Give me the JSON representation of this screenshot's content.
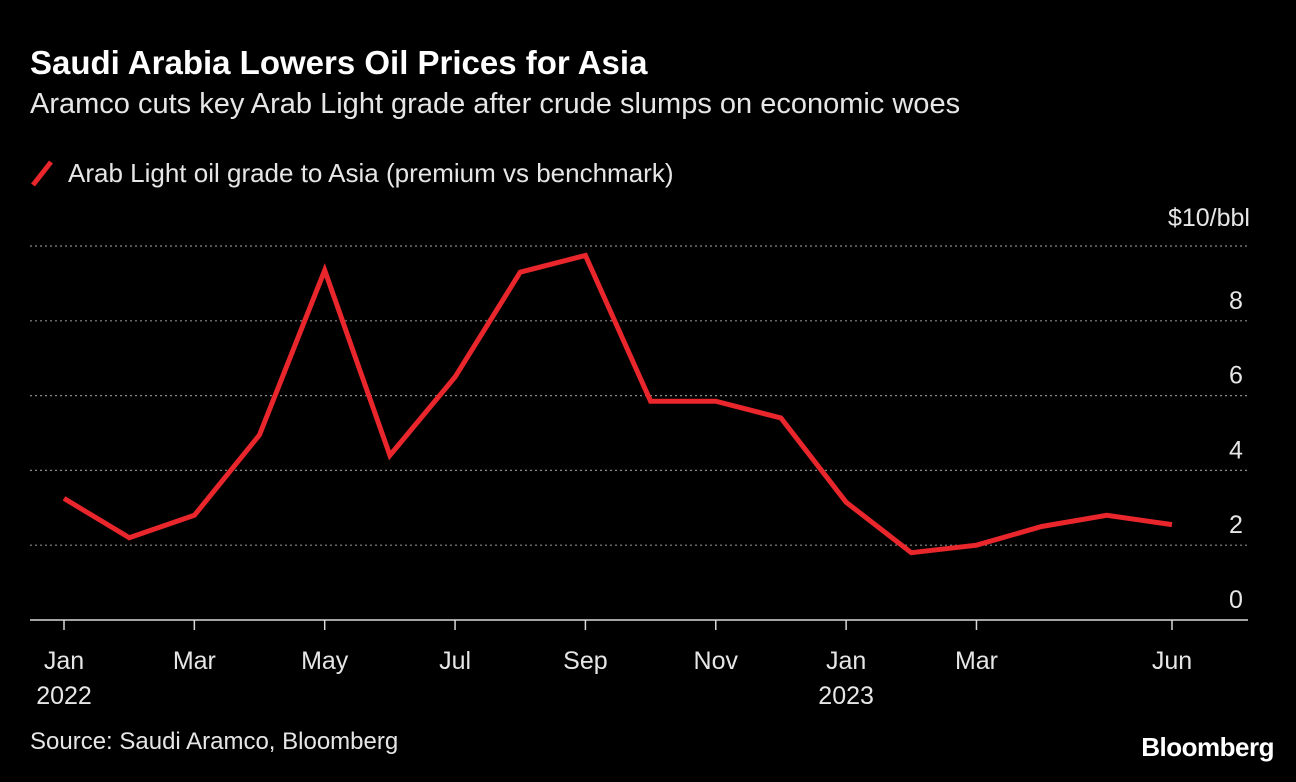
{
  "header": {
    "title": "Saudi Arabia Lowers Oil Prices for Asia",
    "subtitle": "Aramco cuts key Arab Light grade after crude slumps on economic woes"
  },
  "footer": {
    "source": "Source: Saudi Aramco, Bloomberg",
    "brand": "Bloomberg"
  },
  "colors": {
    "background": "#000000",
    "series": "#e8262b",
    "grid": "#8a8a8a",
    "text": "#e6e6e6"
  },
  "chart_data": {
    "type": "line",
    "title": "Saudi Arabia Lowers Oil Prices for Asia",
    "subtitle": "Aramco cuts key Arab Light grade after crude slumps on economic woes",
    "y_unit_label": "$10/bbl",
    "y_ticks": [
      "0",
      "2",
      "4",
      "6",
      "8"
    ],
    "ylim": [
      0,
      10
    ],
    "grid": "horizontal-dotted",
    "y_axis_position": "right",
    "legend_position": "top-left",
    "x_ticks": [
      {
        "date": "2022-01",
        "label": "Jan",
        "year": "2022"
      },
      {
        "date": "2022-03",
        "label": "Mar",
        "year": ""
      },
      {
        "date": "2022-05",
        "label": "May",
        "year": ""
      },
      {
        "date": "2022-07",
        "label": "Jul",
        "year": ""
      },
      {
        "date": "2022-09",
        "label": "Sep",
        "year": ""
      },
      {
        "date": "2022-11",
        "label": "Nov",
        "year": ""
      },
      {
        "date": "2023-01",
        "label": "Jan",
        "year": "2023"
      },
      {
        "date": "2023-03",
        "label": "Mar",
        "year": ""
      },
      {
        "date": "2023-06",
        "label": "Jun",
        "year": ""
      }
    ],
    "x_range": [
      "2022-01",
      "2023-06"
    ],
    "series": [
      {
        "name": "Arab Light oil grade to Asia (premium vs benchmark)",
        "color": "#e8262b",
        "x": [
          "2022-01",
          "2022-02",
          "2022-03",
          "2022-04",
          "2022-05",
          "2022-06",
          "2022-07",
          "2022-08",
          "2022-09",
          "2022-10",
          "2022-11",
          "2022-12",
          "2023-01",
          "2023-02",
          "2023-03",
          "2023-04",
          "2023-05",
          "2023-06"
        ],
        "values": [
          3.25,
          2.2,
          2.8,
          4.95,
          9.35,
          4.4,
          6.5,
          9.3,
          9.75,
          5.85,
          5.85,
          5.4,
          3.15,
          1.8,
          2.0,
          2.5,
          2.8,
          2.55
        ]
      }
    ]
  }
}
